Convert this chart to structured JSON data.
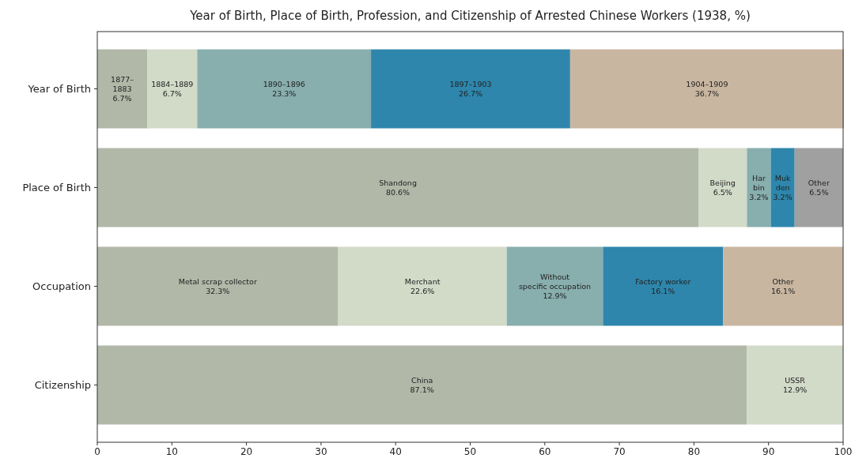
{
  "chart_data": {
    "type": "bar",
    "title": "Year of Birth, Place of Birth, Profession, and Citizenship of Arrested Chinese Workers (1938, %)",
    "orientation": "horizontal",
    "stacked": true,
    "categories": [
      "Year of Birth",
      "Place of Birth",
      "Occupation",
      "Citizenship"
    ],
    "xlim": [
      0,
      100
    ],
    "xticks": [
      0,
      10,
      20,
      30,
      40,
      50,
      60,
      70,
      80,
      90,
      100
    ],
    "grid": false,
    "series": [
      {
        "colors": [
          "#b2b8a8",
          "#b2b8a8",
          "#b2b8a8",
          "#b2b8a8"
        ],
        "values": [
          6.7,
          80.6,
          32.3,
          87.1
        ],
        "value_labels": [
          "1877–\n1883\n6.7%",
          "Shandong\n80.6%",
          "Metal scrap collector\n32.3%",
          "China\n87.1%"
        ]
      },
      {
        "colors": [
          "#d2dac8",
          "#d2dac8",
          "#d2dac8",
          "#d2dac8"
        ],
        "values": [
          6.7,
          6.5,
          22.6,
          12.9
        ],
        "value_labels": [
          "1884–1889\n6.7%",
          "Beijing\n6.5%",
          "Merchant\n22.6%",
          "USSR\n12.9%"
        ]
      },
      {
        "colors": [
          "#88aeae",
          "#88aeae",
          "#88aeae",
          null
        ],
        "values": [
          23.3,
          3.2,
          12.9,
          null
        ],
        "value_labels": [
          "1890–1896\n23.3%",
          "Har\nbin\n3.2%",
          "Without\nspecific occupation\n12.9%",
          null
        ]
      },
      {
        "colors": [
          "#2e86ac",
          "#2e86ac",
          "#2e86ac",
          null
        ],
        "values": [
          26.7,
          3.2,
          16.1,
          null
        ],
        "value_labels": [
          "1897–1903\n26.7%",
          "Muk\nden\n3.2%",
          "Factory worker\n16.1%",
          null
        ]
      },
      {
        "colors": [
          "#c9b6a0",
          "#a0a0a0",
          "#c9b6a0",
          null
        ],
        "values": [
          36.7,
          6.5,
          16.1,
          null
        ],
        "value_labels": [
          "1904–1909\n36.7%",
          "Other\n6.5%",
          "Other\n16.1%",
          null
        ]
      }
    ]
  }
}
